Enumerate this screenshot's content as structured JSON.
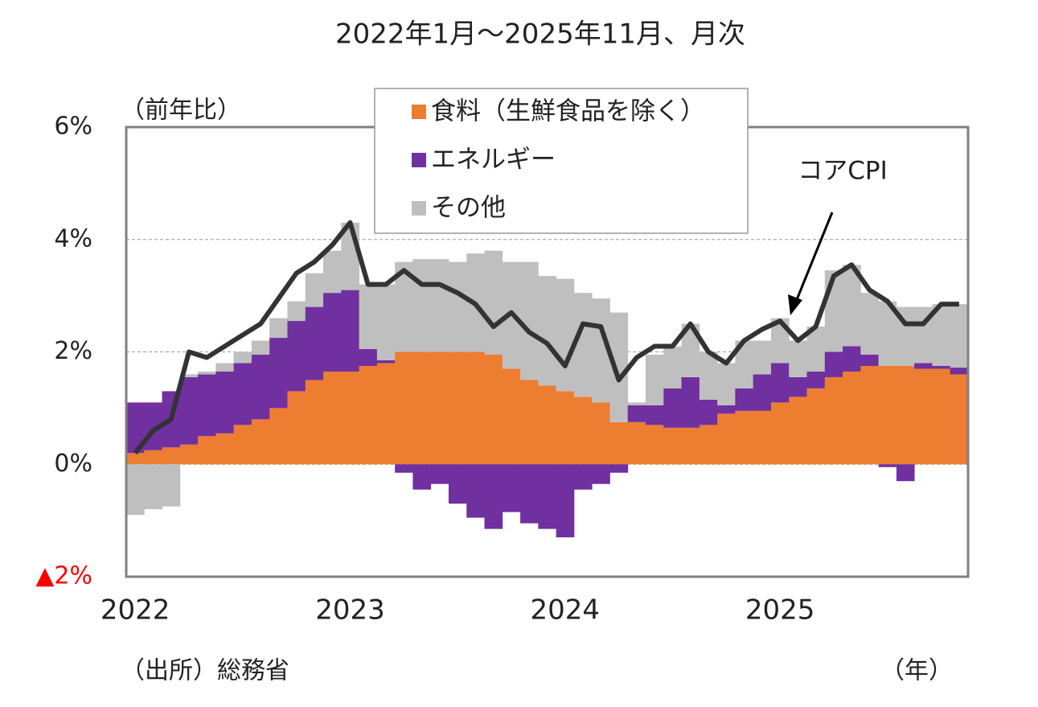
{
  "chart_data": {
    "type": "stacked_bar_line",
    "title": "2022年1月～2025年11月、月次",
    "y_label": "（前年比）",
    "x_label": "（年）",
    "source": "（出所）総務省",
    "categories": [
      "2022",
      null,
      null,
      null,
      null,
      null,
      null,
      null,
      null,
      null,
      null,
      null,
      "2023",
      null,
      null,
      null,
      null,
      null,
      null,
      null,
      null,
      null,
      null,
      null,
      "2024",
      null,
      null,
      null,
      null,
      null,
      null,
      null,
      null,
      null,
      null,
      null,
      "2025",
      null,
      null,
      null,
      null,
      null,
      null,
      null,
      null,
      null,
      null
    ],
    "ylim": [
      -2,
      6
    ],
    "yticks": [
      {
        "value": 6,
        "label": "6%"
      },
      {
        "value": 4,
        "label": "4%"
      },
      {
        "value": 2,
        "label": "2%"
      },
      {
        "value": 0,
        "label": "0%"
      },
      {
        "value": -2,
        "label": "▲2%",
        "color": "#ff0000"
      }
    ],
    "grid": true,
    "legend_position": "upper center",
    "series": [
      {
        "name": "食料（生鮮食品を除く）",
        "color": "#ed7d31",
        "type": "bar",
        "values": [
          0.2,
          0.25,
          0.3,
          0.35,
          0.5,
          0.55,
          0.7,
          0.8,
          1.0,
          1.3,
          1.5,
          1.65,
          1.65,
          1.75,
          1.8,
          2.0,
          2.0,
          2.0,
          2.0,
          2.0,
          1.95,
          1.7,
          1.5,
          1.4,
          1.3,
          1.2,
          1.1,
          0.75,
          0.75,
          0.7,
          0.65,
          0.65,
          0.7,
          0.9,
          0.95,
          0.95,
          1.1,
          1.2,
          1.35,
          1.55,
          1.65,
          1.75,
          1.75,
          1.75,
          1.7,
          1.7,
          1.6
        ]
      },
      {
        "name": "エネルギー",
        "color": "#7030a0",
        "type": "bar",
        "values": [
          0.9,
          0.85,
          1.0,
          1.2,
          1.1,
          1.1,
          1.1,
          1.15,
          1.25,
          1.25,
          1.3,
          1.4,
          1.45,
          0.3,
          0.05,
          -0.15,
          -0.45,
          -0.35,
          -0.7,
          -0.95,
          -1.15,
          -0.85,
          -1.05,
          -1.15,
          -1.3,
          -0.45,
          -0.35,
          -0.15,
          0.3,
          0.35,
          0.7,
          0.9,
          0.45,
          0.15,
          0.4,
          0.65,
          0.7,
          0.35,
          0.3,
          0.45,
          0.45,
          0.2,
          -0.05,
          -0.3,
          0.1,
          0.05,
          0.12
        ]
      },
      {
        "name": "その他",
        "color": "#bfbfbf",
        "type": "bar",
        "values": [
          -0.9,
          -0.8,
          -0.75,
          0.05,
          0.05,
          0.15,
          0.2,
          0.25,
          0.35,
          0.35,
          0.6,
          0.75,
          1.2,
          1.15,
          1.35,
          1.6,
          1.65,
          1.65,
          1.6,
          1.75,
          1.85,
          1.9,
          2.1,
          1.95,
          2.0,
          1.85,
          1.85,
          1.95,
          0.05,
          0.9,
          0.75,
          0.95,
          0.85,
          0.75,
          0.85,
          0.6,
          0.8,
          0.65,
          0.8,
          1.45,
          1.45,
          1.1,
          1.15,
          1.05,
          1.0,
          1.1,
          1.13
        ]
      },
      {
        "name": "コアCPI",
        "color": "#333333",
        "type": "line",
        "values": [
          0.2,
          0.6,
          0.8,
          2.0,
          1.9,
          2.1,
          2.3,
          2.5,
          2.95,
          3.4,
          3.6,
          3.9,
          4.3,
          3.2,
          3.2,
          3.45,
          3.2,
          3.2,
          3.05,
          2.85,
          2.45,
          2.7,
          2.35,
          2.15,
          1.75,
          2.5,
          2.45,
          1.5,
          1.9,
          2.1,
          2.1,
          2.5,
          2.0,
          1.8,
          2.2,
          2.4,
          2.55,
          2.2,
          2.45,
          3.35,
          3.55,
          3.1,
          2.9,
          2.5,
          2.5,
          2.85,
          2.85
        ]
      }
    ]
  }
}
